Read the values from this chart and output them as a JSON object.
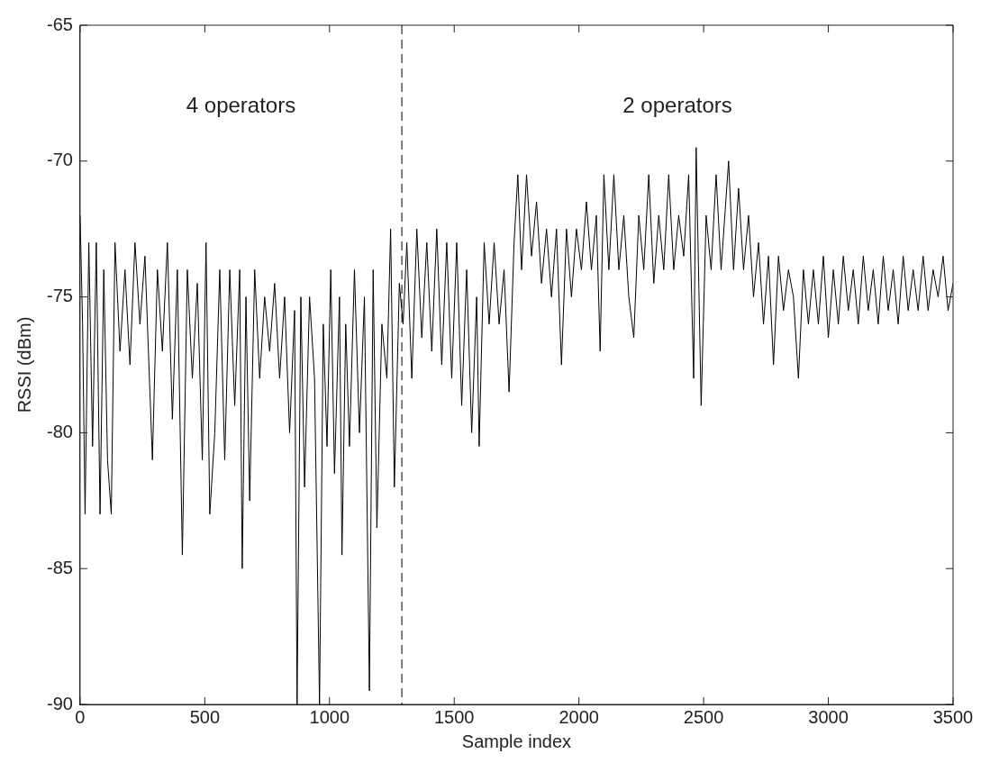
{
  "chart_data": {
    "type": "line",
    "xlabel": "Sample index",
    "ylabel": "RSSI (dBm)",
    "xlim": [
      0,
      3500
    ],
    "ylim": [
      -90,
      -65
    ],
    "xticks": [
      0,
      500,
      1000,
      1500,
      2000,
      2500,
      3000,
      3500
    ],
    "yticks": [
      -90,
      -85,
      -80,
      -75,
      -70,
      -65
    ],
    "grid": false,
    "legend": false,
    "marker": "none",
    "line_style": "solid",
    "ref_lines": [
      {
        "axis": "x",
        "value": 1290,
        "line_style": "dashed",
        "color": "#000000"
      }
    ],
    "annotations": [
      "4 operators",
      "2 operators"
    ],
    "series": [
      {
        "color": "#000000",
        "x": [
          0,
          10,
          20,
          35,
          50,
          65,
          80,
          95,
          110,
          125,
          140,
          160,
          180,
          200,
          220,
          240,
          260,
          280,
          290,
          310,
          330,
          350,
          370,
          390,
          410,
          430,
          450,
          470,
          490,
          505,
          520,
          540,
          560,
          580,
          600,
          620,
          640,
          650,
          665,
          680,
          700,
          720,
          740,
          760,
          780,
          800,
          820,
          840,
          860,
          870,
          885,
          900,
          920,
          940,
          960,
          975,
          990,
          1005,
          1020,
          1040,
          1050,
          1065,
          1080,
          1100,
          1120,
          1140,
          1160,
          1175,
          1190,
          1210,
          1230,
          1245,
          1260,
          1280,
          1295,
          1310,
          1330,
          1350,
          1370,
          1390,
          1410,
          1430,
          1450,
          1470,
          1490,
          1510,
          1530,
          1550,
          1570,
          1590,
          1600,
          1620,
          1640,
          1660,
          1680,
          1700,
          1720,
          1740,
          1755,
          1770,
          1790,
          1810,
          1830,
          1850,
          1870,
          1890,
          1910,
          1930,
          1950,
          1970,
          1990,
          2010,
          2030,
          2050,
          2070,
          2085,
          2100,
          2120,
          2140,
          2160,
          2180,
          2200,
          2220,
          2240,
          2260,
          2280,
          2300,
          2320,
          2340,
          2360,
          2380,
          2400,
          2420,
          2440,
          2460,
          2470,
          2490,
          2510,
          2530,
          2550,
          2570,
          2600,
          2620,
          2640,
          2660,
          2680,
          2700,
          2720,
          2740,
          2760,
          2780,
          2800,
          2820,
          2840,
          2860,
          2880,
          2900,
          2920,
          2940,
          2960,
          2980,
          3000,
          3020,
          3040,
          3060,
          3080,
          3100,
          3120,
          3140,
          3160,
          3180,
          3200,
          3220,
          3240,
          3260,
          3280,
          3300,
          3320,
          3340,
          3360,
          3380,
          3400,
          3420,
          3440,
          3460,
          3480,
          3500
        ],
        "values": [
          -72,
          -76,
          -83,
          -73,
          -80.5,
          -73,
          -83,
          -74,
          -81,
          -83,
          -73,
          -77,
          -74,
          -77.5,
          -73,
          -76,
          -73.5,
          -78.5,
          -81,
          -74,
          -77,
          -73,
          -79.5,
          -74,
          -84.5,
          -74,
          -78,
          -74.5,
          -81,
          -73,
          -83,
          -80,
          -74,
          -81,
          -74,
          -79,
          -74,
          -85,
          -75,
          -82.5,
          -74,
          -78,
          -75,
          -77,
          -74.5,
          -78,
          -75,
          -80,
          -75.5,
          -90,
          -75,
          -82,
          -75,
          -78,
          -90,
          -76,
          -80.5,
          -74,
          -81.5,
          -75,
          -84.5,
          -76,
          -80.5,
          -74,
          -80,
          -75,
          -89.5,
          -74,
          -83.5,
          -76,
          -78,
          -72.5,
          -82,
          -74.5,
          -76,
          -73,
          -78,
          -72.5,
          -76.5,
          -73,
          -77,
          -72.5,
          -77.5,
          -73,
          -78,
          -73,
          -79,
          -74,
          -80,
          -75,
          -80.5,
          -73,
          -76,
          -73,
          -76,
          -74,
          -78.5,
          -73,
          -70.5,
          -74,
          -70.5,
          -73.5,
          -71.5,
          -74.5,
          -72.5,
          -75,
          -72.5,
          -77.5,
          -72.5,
          -75,
          -72.5,
          -74,
          -71.5,
          -74,
          -72,
          -77,
          -70.5,
          -74,
          -70.5,
          -74,
          -72,
          -75,
          -76.5,
          -72,
          -74,
          -70.5,
          -74.5,
          -72,
          -74,
          -70.5,
          -74,
          -72,
          -73.5,
          -70.5,
          -78,
          -69.5,
          -79,
          -72,
          -74,
          -70.5,
          -74,
          -70,
          -74,
          -71,
          -74,
          -72,
          -75,
          -73,
          -76,
          -73.5,
          -77.5,
          -73.5,
          -75.5,
          -74,
          -75,
          -78,
          -74,
          -76,
          -74,
          -76,
          -73.5,
          -76.5,
          -74,
          -76,
          -73.5,
          -75.5,
          -74,
          -76,
          -73.5,
          -75.5,
          -74,
          -76,
          -73.5,
          -75.5,
          -74,
          -76,
          -73.5,
          -75.5,
          -74,
          -75.5,
          -73.5,
          -75.5,
          -74,
          -75,
          -73.5,
          -75.5,
          -74.5
        ]
      }
    ]
  }
}
